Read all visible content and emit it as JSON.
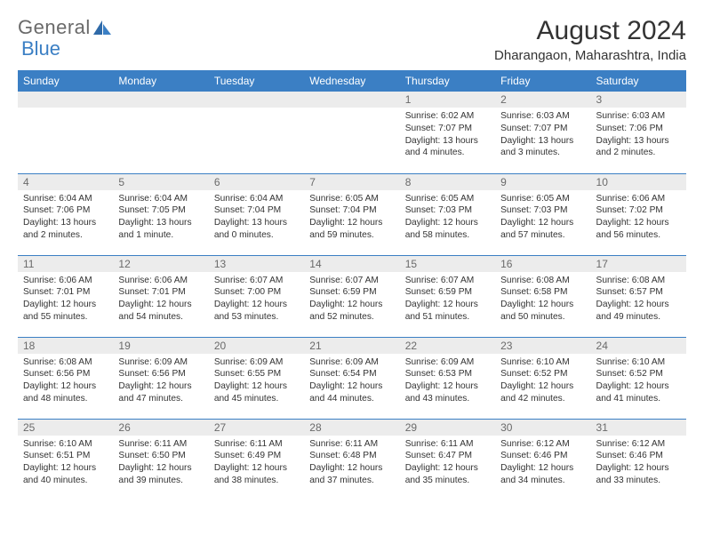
{
  "brand": {
    "word1": "General",
    "word2": "Blue"
  },
  "title": "August 2024",
  "location": "Dharangaon, Maharashtra, India",
  "colors": {
    "header_bg": "#3b7fc4",
    "header_fg": "#ffffff",
    "daynum_bg": "#ececec",
    "daynum_fg": "#6a6a6a",
    "row_border": "#3b7fc4",
    "text": "#333333",
    "logo_gray": "#6a6a6a",
    "logo_blue": "#3b7fc4",
    "page_bg": "#ffffff"
  },
  "weekdays": [
    "Sunday",
    "Monday",
    "Tuesday",
    "Wednesday",
    "Thursday",
    "Friday",
    "Saturday"
  ],
  "weeks": [
    [
      null,
      null,
      null,
      null,
      {
        "n": "1",
        "sr": "6:02 AM",
        "ss": "7:07 PM",
        "dl": "13 hours and 4 minutes."
      },
      {
        "n": "2",
        "sr": "6:03 AM",
        "ss": "7:07 PM",
        "dl": "13 hours and 3 minutes."
      },
      {
        "n": "3",
        "sr": "6:03 AM",
        "ss": "7:06 PM",
        "dl": "13 hours and 2 minutes."
      }
    ],
    [
      {
        "n": "4",
        "sr": "6:04 AM",
        "ss": "7:06 PM",
        "dl": "13 hours and 2 minutes."
      },
      {
        "n": "5",
        "sr": "6:04 AM",
        "ss": "7:05 PM",
        "dl": "13 hours and 1 minute."
      },
      {
        "n": "6",
        "sr": "6:04 AM",
        "ss": "7:04 PM",
        "dl": "13 hours and 0 minutes."
      },
      {
        "n": "7",
        "sr": "6:05 AM",
        "ss": "7:04 PM",
        "dl": "12 hours and 59 minutes."
      },
      {
        "n": "8",
        "sr": "6:05 AM",
        "ss": "7:03 PM",
        "dl": "12 hours and 58 minutes."
      },
      {
        "n": "9",
        "sr": "6:05 AM",
        "ss": "7:03 PM",
        "dl": "12 hours and 57 minutes."
      },
      {
        "n": "10",
        "sr": "6:06 AM",
        "ss": "7:02 PM",
        "dl": "12 hours and 56 minutes."
      }
    ],
    [
      {
        "n": "11",
        "sr": "6:06 AM",
        "ss": "7:01 PM",
        "dl": "12 hours and 55 minutes."
      },
      {
        "n": "12",
        "sr": "6:06 AM",
        "ss": "7:01 PM",
        "dl": "12 hours and 54 minutes."
      },
      {
        "n": "13",
        "sr": "6:07 AM",
        "ss": "7:00 PM",
        "dl": "12 hours and 53 minutes."
      },
      {
        "n": "14",
        "sr": "6:07 AM",
        "ss": "6:59 PM",
        "dl": "12 hours and 52 minutes."
      },
      {
        "n": "15",
        "sr": "6:07 AM",
        "ss": "6:59 PM",
        "dl": "12 hours and 51 minutes."
      },
      {
        "n": "16",
        "sr": "6:08 AM",
        "ss": "6:58 PM",
        "dl": "12 hours and 50 minutes."
      },
      {
        "n": "17",
        "sr": "6:08 AM",
        "ss": "6:57 PM",
        "dl": "12 hours and 49 minutes."
      }
    ],
    [
      {
        "n": "18",
        "sr": "6:08 AM",
        "ss": "6:56 PM",
        "dl": "12 hours and 48 minutes."
      },
      {
        "n": "19",
        "sr": "6:09 AM",
        "ss": "6:56 PM",
        "dl": "12 hours and 47 minutes."
      },
      {
        "n": "20",
        "sr": "6:09 AM",
        "ss": "6:55 PM",
        "dl": "12 hours and 45 minutes."
      },
      {
        "n": "21",
        "sr": "6:09 AM",
        "ss": "6:54 PM",
        "dl": "12 hours and 44 minutes."
      },
      {
        "n": "22",
        "sr": "6:09 AM",
        "ss": "6:53 PM",
        "dl": "12 hours and 43 minutes."
      },
      {
        "n": "23",
        "sr": "6:10 AM",
        "ss": "6:52 PM",
        "dl": "12 hours and 42 minutes."
      },
      {
        "n": "24",
        "sr": "6:10 AM",
        "ss": "6:52 PM",
        "dl": "12 hours and 41 minutes."
      }
    ],
    [
      {
        "n": "25",
        "sr": "6:10 AM",
        "ss": "6:51 PM",
        "dl": "12 hours and 40 minutes."
      },
      {
        "n": "26",
        "sr": "6:11 AM",
        "ss": "6:50 PM",
        "dl": "12 hours and 39 minutes."
      },
      {
        "n": "27",
        "sr": "6:11 AM",
        "ss": "6:49 PM",
        "dl": "12 hours and 38 minutes."
      },
      {
        "n": "28",
        "sr": "6:11 AM",
        "ss": "6:48 PM",
        "dl": "12 hours and 37 minutes."
      },
      {
        "n": "29",
        "sr": "6:11 AM",
        "ss": "6:47 PM",
        "dl": "12 hours and 35 minutes."
      },
      {
        "n": "30",
        "sr": "6:12 AM",
        "ss": "6:46 PM",
        "dl": "12 hours and 34 minutes."
      },
      {
        "n": "31",
        "sr": "6:12 AM",
        "ss": "6:46 PM",
        "dl": "12 hours and 33 minutes."
      }
    ]
  ],
  "labels": {
    "sunrise": "Sunrise:",
    "sunset": "Sunset:",
    "daylight": "Daylight:"
  }
}
